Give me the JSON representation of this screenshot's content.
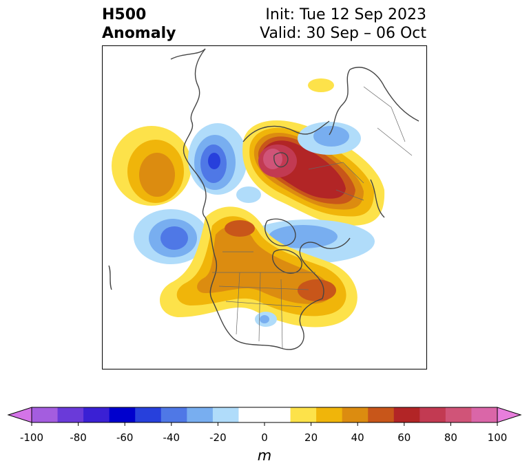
{
  "header": {
    "variable": "H500",
    "field": "Anomaly",
    "init": "Init: Tue 12 Sep 2023",
    "valid": "Valid: 30 Sep – 06 Oct"
  },
  "colorbar": {
    "ticks": [
      "-100",
      "-80",
      "-60",
      "-40",
      "-20",
      "0",
      "20",
      "40",
      "60",
      "80",
      "100"
    ],
    "unit": "m",
    "colors": [
      "#d474e8",
      "#a45ddf",
      "#6a3ad9",
      "#3a20d4",
      "#0000cd",
      "#2740dc",
      "#4f78e6",
      "#78aef0",
      "#b0dcfa",
      "#ffffff",
      "#ffffff",
      "#fde24a",
      "#f0b50a",
      "#dc8c10",
      "#c8561a",
      "#b22526",
      "#c23a52",
      "#d05478",
      "#da66a8",
      "#e87edc"
    ]
  }
}
